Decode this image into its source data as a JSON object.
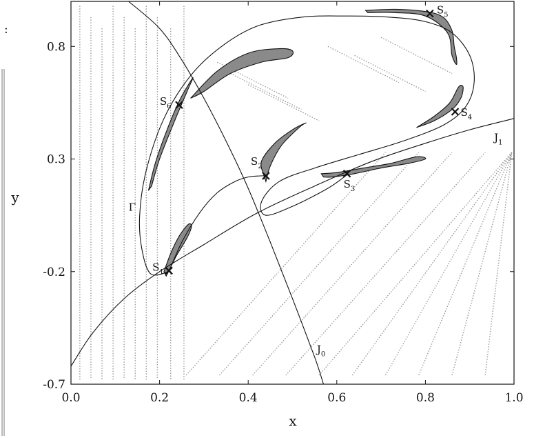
{
  "chart_data": {
    "type": "line",
    "xlabel": "x",
    "ylabel": "y",
    "xlim": [
      0.0,
      1.0
    ],
    "ylim": [
      -0.7,
      1.0
    ],
    "xticks": [
      0.0,
      0.2,
      0.4,
      0.6,
      0.8,
      1.0
    ],
    "xtick_labels": [
      "0.0",
      "0.2",
      "0.4",
      "0.6",
      "0.8",
      "1.0"
    ],
    "yticks": [
      -0.7,
      -0.2,
      0.3,
      0.8
    ],
    "ytick_labels": [
      "-0.7",
      "-0.2",
      "0.3",
      "0.8"
    ],
    "grid": false,
    "curves": [
      {
        "name": "J",
        "sub": "0",
        "label_at": [
          0.555,
          -0.56
        ],
        "x": [
          0.13,
          0.2,
          0.25,
          0.3,
          0.35,
          0.4,
          0.45,
          0.5,
          0.55,
          0.57
        ],
        "y": [
          1.0,
          0.88,
          0.74,
          0.57,
          0.38,
          0.17,
          -0.07,
          -0.32,
          -0.58,
          -0.7
        ]
      },
      {
        "name": "J",
        "sub": "1",
        "label_at": [
          0.955,
          0.38
        ],
        "x": [
          0.0,
          0.05,
          0.12,
          0.2,
          0.3,
          0.42,
          0.55,
          0.68,
          0.8,
          0.9,
          1.0
        ],
        "y": [
          -0.62,
          -0.47,
          -0.32,
          -0.2,
          -0.08,
          0.06,
          0.18,
          0.29,
          0.37,
          0.43,
          0.48
        ]
      },
      {
        "name": "Γ",
        "sub": "",
        "label_at": [
          0.13,
          0.07
        ],
        "x": [
          0.221,
          0.18,
          0.16,
          0.155,
          0.17,
          0.21,
          0.27,
          0.34,
          0.42,
          0.52,
          0.62,
          0.72,
          0.8,
          0.86,
          0.9,
          0.91,
          0.89,
          0.84,
          0.75,
          0.65,
          0.55,
          0.47,
          0.43,
          0.44,
          0.5,
          0.58,
          0.623
        ],
        "y": [
          -0.2,
          -0.21,
          -0.1,
          0.05,
          0.25,
          0.48,
          0.67,
          0.8,
          0.89,
          0.93,
          0.935,
          0.93,
          0.91,
          0.86,
          0.76,
          0.64,
          0.53,
          0.45,
          0.38,
          0.32,
          0.26,
          0.2,
          0.11,
          0.05,
          0.09,
          0.17,
          0.23
        ]
      },
      {
        "name": "",
        "sub": "",
        "label_at": null,
        "x": [
          0.221,
          0.25,
          0.29,
          0.33,
          0.37,
          0.4,
          0.427,
          0.44
        ],
        "y": [
          -0.2,
          -0.07,
          0.06,
          0.15,
          0.2,
          0.22,
          0.225,
          0.225
        ]
      }
    ],
    "points": [
      {
        "name": "S",
        "sub": "1",
        "x": 0.221,
        "y": -0.196
      },
      {
        "name": "S",
        "sub": "2",
        "x": 0.44,
        "y": 0.225
      },
      {
        "name": "S",
        "sub": "3",
        "x": 0.623,
        "y": 0.235
      },
      {
        "name": "S",
        "sub": "4",
        "x": 0.867,
        "y": 0.51
      },
      {
        "name": "S",
        "sub": "5",
        "x": 0.81,
        "y": 0.946
      },
      {
        "name": "S",
        "sub": "6",
        "x": 0.244,
        "y": 0.54
      }
    ],
    "shaded_regions": [
      {
        "x": [
          0.175,
          0.19,
          0.215,
          0.245,
          0.275,
          0.262,
          0.232,
          0.2,
          0.182
        ],
        "y": [
          0.16,
          0.28,
          0.42,
          0.56,
          0.66,
          0.6,
          0.46,
          0.3,
          0.18
        ]
      },
      {
        "x": [
          0.27,
          0.33,
          0.4,
          0.47,
          0.5,
          0.49,
          0.43,
          0.36,
          0.3,
          0.27
        ],
        "y": [
          0.57,
          0.69,
          0.77,
          0.79,
          0.78,
          0.75,
          0.73,
          0.68,
          0.6,
          0.57
        ]
      },
      {
        "x": [
          0.435,
          0.43,
          0.46,
          0.5,
          0.53,
          0.515,
          0.475,
          0.45,
          0.44
        ],
        "y": [
          0.23,
          0.29,
          0.37,
          0.43,
          0.46,
          0.44,
          0.36,
          0.27,
          0.2
        ]
      },
      {
        "x": [
          0.565,
          0.6,
          0.66,
          0.72,
          0.78,
          0.8,
          0.76,
          0.7,
          0.64,
          0.59,
          0.57
        ],
        "y": [
          0.235,
          0.24,
          0.26,
          0.28,
          0.31,
          0.3,
          0.28,
          0.26,
          0.235,
          0.22,
          0.22
        ]
      },
      {
        "x": [
          0.78,
          0.82,
          0.86,
          0.88,
          0.885,
          0.875,
          0.855,
          0.82,
          0.78
        ],
        "y": [
          0.44,
          0.47,
          0.52,
          0.57,
          0.62,
          0.62,
          0.55,
          0.49,
          0.44
        ]
      },
      {
        "x": [
          0.665,
          0.73,
          0.8,
          0.84,
          0.86,
          0.865,
          0.87,
          0.87,
          0.86,
          0.85,
          0.8,
          0.73,
          0.67
        ],
        "y": [
          0.96,
          0.965,
          0.955,
          0.93,
          0.87,
          0.8,
          0.75,
          0.72,
          0.76,
          0.86,
          0.935,
          0.95,
          0.95
        ]
      },
      {
        "x": [
          0.21,
          0.225,
          0.245,
          0.265,
          0.272,
          0.262,
          0.238,
          0.215
        ],
        "y": [
          -0.2,
          -0.12,
          -0.04,
          0.01,
          0.0,
          -0.05,
          -0.13,
          -0.22
        ]
      }
    ]
  }
}
